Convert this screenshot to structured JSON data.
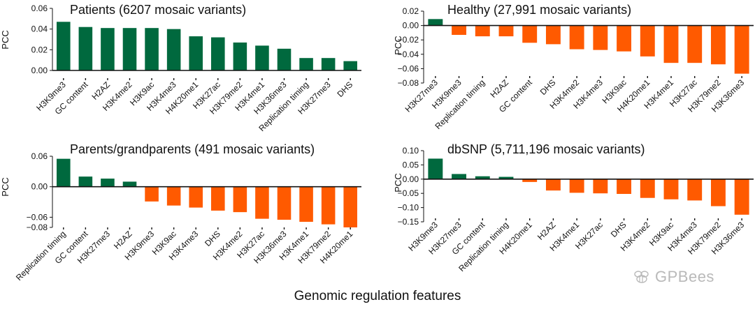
{
  "figure": {
    "xlabel": "Genomic regulation features",
    "watermark": "GPBees",
    "colors": {
      "positive": "#00693E",
      "negative": "#FF5A00"
    }
  },
  "chart_data": [
    {
      "type": "bar",
      "title": "Patients (6207 mosaic variants)",
      "ylabel": "PCC",
      "ylim": [
        0,
        0.06
      ],
      "yticks": [
        0.06,
        0.04,
        0.02,
        0.0
      ],
      "ytick_labels": [
        "0.06",
        "0.04",
        "0.02",
        "0.00"
      ],
      "categories": [
        "H3K9me3",
        "GC content",
        "H2AZ",
        "H3K4me2",
        "H3K9ac",
        "H3K4me3",
        "H4K20me1",
        "H3K27ac",
        "H3K79me2",
        "H3K4me1",
        "H3K36me3",
        "Replication timing",
        "H3K27me3",
        "DHS"
      ],
      "values": [
        0.047,
        0.042,
        0.041,
        0.041,
        0.041,
        0.04,
        0.033,
        0.032,
        0.027,
        0.024,
        0.021,
        0.012,
        0.012,
        0.009
      ]
    },
    {
      "type": "bar",
      "title": "Healthy (27,991 mosaic variants)",
      "ylabel": "PCC",
      "ylim": [
        -0.08,
        0.02
      ],
      "yticks": [
        0.02,
        0.0,
        -0.02,
        -0.04,
        -0.06,
        -0.08
      ],
      "ytick_labels": [
        "0.02",
        "0.00",
        "−0.02",
        "−0.04",
        "−0.06",
        "−0.08"
      ],
      "categories": [
        "H3K27me3",
        "H3K9me3",
        "Replication timing",
        "H2AZ",
        "GC content",
        "DHS",
        "H3K4me2",
        "H3K4me3",
        "H3K9ac",
        "H4K20me1",
        "H3K4me1",
        "H3K27ac",
        "H3K79me2",
        "H3K36me3"
      ],
      "values": [
        0.009,
        -0.013,
        -0.015,
        -0.015,
        -0.024,
        -0.026,
        -0.033,
        -0.034,
        -0.036,
        -0.043,
        -0.052,
        -0.052,
        -0.054,
        -0.067
      ]
    },
    {
      "type": "bar",
      "title": "Parents/grandparents (491 mosaic variants)",
      "ylabel": "PCC",
      "ylim": [
        -0.08,
        0.06
      ],
      "yticks": [
        0.06,
        0.0,
        -0.06,
        -0.08
      ],
      "ytick_labels": [
        "0.06",
        "0.00",
        "−0.06",
        "−0.08"
      ],
      "categories": [
        "Replication timing",
        "GC content",
        "H3K27me3",
        "H2AZ",
        "H3K9me3",
        "H3K9ac",
        "H3K4me3",
        "DHS",
        "H3K4me2",
        "H3K27ac",
        "H3K36me3",
        "H3K4me1",
        "H3K79me2",
        "H4K20me1"
      ],
      "values": [
        0.055,
        0.02,
        0.016,
        0.01,
        -0.029,
        -0.037,
        -0.041,
        -0.047,
        -0.05,
        -0.063,
        -0.065,
        -0.069,
        -0.074,
        -0.08
      ]
    },
    {
      "type": "bar",
      "title": "dbSNP (5,711,196 mosaic variants)",
      "ylabel": "PCC",
      "ylim": [
        -0.15,
        0.1
      ],
      "yticks": [
        0.1,
        0.05,
        0.0,
        -0.05,
        -0.1,
        -0.15
      ],
      "ytick_labels": [
        "0.10",
        "0.05",
        "0.00",
        "−0.05",
        "−0.10",
        "−0.15"
      ],
      "categories": [
        "H3K9me3",
        "H3K27me3",
        "GC content",
        "Replication timing",
        "H4K20me1",
        "H2AZ",
        "H3K4me1",
        "H3K27ac",
        "DHS",
        "H3K4me2",
        "H3K9ac",
        "H3K4me3",
        "H3K79me2",
        "H3K36me3"
      ],
      "values": [
        0.072,
        0.018,
        0.01,
        0.008,
        -0.01,
        -0.04,
        -0.048,
        -0.05,
        -0.052,
        -0.066,
        -0.071,
        -0.075,
        -0.095,
        -0.125
      ]
    }
  ]
}
